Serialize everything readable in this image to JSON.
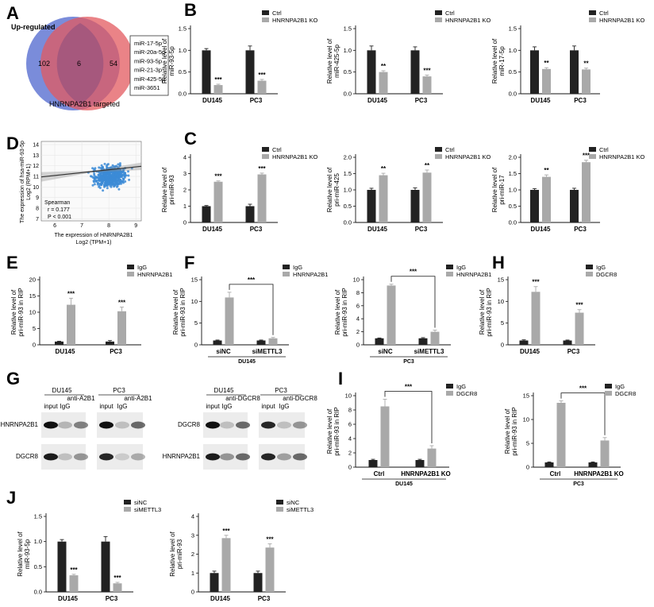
{
  "colors": {
    "dark": "#222222",
    "light": "#a9a9a9",
    "venn_left": "#6b7fd6",
    "venn_right": "#e35a5f"
  },
  "panel_A": {
    "letter": "A",
    "left_label": "Up-regulated",
    "right_label": "HNRNPA2B1 targeted",
    "left_count": "102",
    "overlap_count": "6",
    "right_count": "54",
    "overlap_mirnas": [
      "miR-17-5p",
      "miR-20a-5p",
      "miR-93-5p",
      "miR-21-3p",
      "miR-425-5p",
      "miR-3651"
    ]
  },
  "panel_D": {
    "letter": "D",
    "ylabel_line1": "The expression of hsa-miR-93-5p",
    "ylabel_line2": "Log2 (RPM+1)",
    "xlabel_line1": "The expression of HNRNPA2B1",
    "xlabel_line2": "Log2 (TPM+1)",
    "stats": [
      "Spearman",
      "r = 0.177",
      "P < 0.001"
    ],
    "xticks": [
      "6",
      "7",
      "8",
      "9"
    ],
    "yticks": [
      "14",
      "13",
      "12",
      "11",
      "10",
      "9",
      "8",
      "7"
    ],
    "chart_data": {
      "type": "scatter",
      "title": "",
      "xlim": [
        5.5,
        9.2
      ],
      "ylim": [
        6.8,
        14.3
      ],
      "trend": {
        "x": [
          5.5,
          9.2
        ],
        "y": [
          10.95,
          11.95
        ]
      }
    }
  },
  "panel_G": {
    "letter": "G",
    "left": {
      "groups": [
        "DU145",
        "PC3"
      ],
      "lanes": [
        "input",
        "IgG",
        "anti-A2B1",
        "input",
        "IgG",
        "anti-A2B1"
      ],
      "rows": [
        "HNRNPA2B1",
        "DGCR8"
      ]
    },
    "right": {
      "groups": [
        "DU145",
        "PC3"
      ],
      "lanes": [
        "input",
        "IgG",
        "anti-DGCR8",
        "input",
        "IgG",
        "anti-DGCR8"
      ],
      "rows": [
        "DGCR8",
        "HNRNPA2B1"
      ]
    }
  },
  "chart_data": [
    {
      "id": "B1",
      "letter": "B",
      "type": "bar",
      "ylabel": [
        "Relative level of",
        "miR-93-5p"
      ],
      "ylim": [
        0,
        1.5
      ],
      "yticks": [
        "0.0",
        "0.5",
        "1.0",
        "1.5"
      ],
      "categories": [
        "DU145",
        "PC3"
      ],
      "series": [
        {
          "name": "Ctrl",
          "values": [
            1.0,
            1.0
          ],
          "err": [
            0.04,
            0.1
          ]
        },
        {
          "name": "HNRNPA2B1 KO",
          "values": [
            0.2,
            0.3
          ],
          "err": [
            0.02,
            0.03
          ]
        }
      ],
      "sig": [
        "***",
        "***"
      ]
    },
    {
      "id": "B2",
      "letter": "",
      "type": "bar",
      "ylabel": [
        "Relative level of",
        "miR-425-5p"
      ],
      "ylim": [
        0,
        1.5
      ],
      "yticks": [
        "0.0",
        "0.5",
        "1.0",
        "1.5"
      ],
      "categories": [
        "DU145",
        "PC3"
      ],
      "series": [
        {
          "name": "Ctrl",
          "values": [
            1.0,
            1.0
          ],
          "err": [
            0.1,
            0.08
          ]
        },
        {
          "name": "HNRNPA2B1 KO",
          "values": [
            0.5,
            0.4
          ],
          "err": [
            0.03,
            0.03
          ]
        }
      ],
      "sig": [
        "**",
        "***"
      ]
    },
    {
      "id": "B3",
      "letter": "",
      "type": "bar",
      "ylabel": [
        "Relative level of",
        "miR-17-5p"
      ],
      "ylim": [
        0,
        1.5
      ],
      "yticks": [
        "0.0",
        "0.5",
        "1.0",
        "1.5"
      ],
      "categories": [
        "DU145",
        "PC3"
      ],
      "series": [
        {
          "name": "Ctrl",
          "values": [
            1.0,
            1.0
          ],
          "err": [
            0.08,
            0.1
          ]
        },
        {
          "name": "HNRNPA2B1 KO",
          "values": [
            0.57,
            0.56
          ],
          "err": [
            0.03,
            0.03
          ]
        }
      ],
      "sig": [
        "**",
        "**"
      ]
    },
    {
      "id": "C1",
      "letter": "C",
      "type": "bar",
      "ylabel": [
        "Relative level of",
        "pri-miR-93"
      ],
      "ylim": [
        0,
        4
      ],
      "yticks": [
        "0",
        "1",
        "2",
        "3",
        "4"
      ],
      "categories": [
        "DU145",
        "PC3"
      ],
      "series": [
        {
          "name": "Ctrl",
          "values": [
            1.0,
            1.0
          ],
          "err": [
            0.04,
            0.12
          ]
        },
        {
          "name": "HNRNPA2B1 KO",
          "values": [
            2.5,
            2.95
          ],
          "err": [
            0.05,
            0.08
          ]
        }
      ],
      "sig": [
        "***",
        "***"
      ]
    },
    {
      "id": "C2",
      "letter": "",
      "type": "bar",
      "ylabel": [
        "Relative level of",
        "pri-miR-425"
      ],
      "ylim": [
        0,
        2.0
      ],
      "yticks": [
        "0.0",
        "0.5",
        "1.0",
        "1.5",
        "2.0"
      ],
      "categories": [
        "DU145",
        "PC3"
      ],
      "series": [
        {
          "name": "Ctrl",
          "values": [
            1.0,
            1.0
          ],
          "err": [
            0.05,
            0.06
          ]
        },
        {
          "name": "HNRNPA2B1 KO",
          "values": [
            1.45,
            1.53
          ],
          "err": [
            0.06,
            0.08
          ]
        }
      ],
      "sig": [
        "**",
        "**"
      ]
    },
    {
      "id": "C3",
      "letter": "",
      "type": "bar",
      "ylabel": [
        "Relative level of",
        "pri-miR-17"
      ],
      "ylim": [
        0,
        2.0
      ],
      "yticks": [
        "0.0",
        "0.5",
        "1.0",
        "1.5",
        "2.0"
      ],
      "categories": [
        "DU145",
        "PC3"
      ],
      "series": [
        {
          "name": "Ctrl",
          "values": [
            1.0,
            1.0
          ],
          "err": [
            0.04,
            0.05
          ]
        },
        {
          "name": "HNRNPA2B1 KO",
          "values": [
            1.4,
            1.85
          ],
          "err": [
            0.06,
            0.06
          ]
        }
      ],
      "sig": [
        "**",
        "***"
      ]
    },
    {
      "id": "E",
      "letter": "E",
      "type": "bar",
      "ylabel": [
        "Relative level of",
        "pri-miR-93 in RIP"
      ],
      "ylim": [
        0,
        20
      ],
      "yticks": [
        "0",
        "5",
        "10",
        "15",
        "20"
      ],
      "categories": [
        "DU145",
        "PC3"
      ],
      "series": [
        {
          "name": "IgG",
          "values": [
            1.0,
            1.0
          ],
          "err": [
            0.1,
            0.3
          ]
        },
        {
          "name": "HNRNPA2B1",
          "values": [
            12.3,
            10.3
          ],
          "err": [
            2.0,
            1.3
          ]
        }
      ],
      "sig": [
        "***",
        "***"
      ]
    },
    {
      "id": "F1",
      "letter": "F",
      "type": "bar",
      "ylabel": [
        "Relative level of",
        "pri-miR-93 in RIP"
      ],
      "ylim": [
        0,
        15
      ],
      "yticks": [
        "0",
        "5",
        "10",
        "15"
      ],
      "categories": [
        "siNC",
        "siMETTL3"
      ],
      "group_label": "DU145",
      "series": [
        {
          "name": "IgG",
          "values": [
            1.0,
            1.0
          ],
          "err": [
            0.1,
            0.1
          ]
        },
        {
          "name": "HNRNPA2B1",
          "values": [
            10.9,
            1.5
          ],
          "err": [
            1.2,
            0.2
          ]
        }
      ],
      "bracket": "***"
    },
    {
      "id": "F2",
      "letter": "",
      "type": "bar",
      "ylabel": [
        "Relative level of",
        "pri-miR-93 in RIP"
      ],
      "ylim": [
        0,
        10
      ],
      "yticks": [
        "0",
        "2",
        "4",
        "6",
        "8",
        "10"
      ],
      "categories": [
        "siNC",
        "siMETTL3"
      ],
      "group_label": "PC3",
      "series": [
        {
          "name": "IgG",
          "values": [
            1.0,
            1.0
          ],
          "err": [
            0.05,
            0.1
          ]
        },
        {
          "name": "HNRNPA2B1",
          "values": [
            9.1,
            2.0
          ],
          "err": [
            0.2,
            0.25
          ]
        }
      ],
      "bracket": "***"
    },
    {
      "id": "H",
      "letter": "H",
      "type": "bar",
      "ylabel": [
        "Relative level of",
        "pri-miR-93 in RIP"
      ],
      "ylim": [
        0,
        15
      ],
      "yticks": [
        "0",
        "5",
        "10",
        "15"
      ],
      "categories": [
        "DU145",
        "PC3"
      ],
      "series": [
        {
          "name": "IgG",
          "values": [
            1.0,
            1.0
          ],
          "err": [
            0.15,
            0.1
          ]
        },
        {
          "name": "DGCR8",
          "values": [
            12.2,
            7.4
          ],
          "err": [
            1.2,
            0.7
          ]
        }
      ],
      "sig": [
        "***",
        "***"
      ]
    },
    {
      "id": "I1",
      "letter": "I",
      "type": "bar",
      "ylabel": [
        "Relative level of",
        "pri-miR-93 in RIP"
      ],
      "ylim": [
        0,
        10
      ],
      "yticks": [
        "0",
        "2",
        "4",
        "6",
        "8",
        "10"
      ],
      "categories": [
        "Ctrl",
        "HNRNPA2B1 KO"
      ],
      "group_label": "DU145",
      "series": [
        {
          "name": "IgG",
          "values": [
            1.0,
            1.0
          ],
          "err": [
            0.1,
            0.1
          ]
        },
        {
          "name": "DGCR8",
          "values": [
            8.5,
            2.6
          ],
          "err": [
            1.0,
            0.4
          ]
        }
      ],
      "bracket": "***"
    },
    {
      "id": "I2",
      "letter": "",
      "type": "bar",
      "ylabel": [
        "Relative level of",
        "pri-miR-93 in RIP"
      ],
      "ylim": [
        0,
        15
      ],
      "yticks": [
        "0",
        "5",
        "10",
        "15"
      ],
      "categories": [
        "Ctrl",
        "HNRNPA2B1 KO"
      ],
      "group_label": "PC3",
      "series": [
        {
          "name": "IgG",
          "values": [
            1.0,
            1.0
          ],
          "err": [
            0.1,
            0.1
          ]
        },
        {
          "name": "DGCR8",
          "values": [
            13.5,
            5.6
          ],
          "err": [
            0.4,
            0.6
          ]
        }
      ],
      "bracket": "***"
    },
    {
      "id": "J1",
      "letter": "J",
      "type": "bar",
      "ylabel": [
        "Relative level of",
        "miR-93-5p"
      ],
      "ylim": [
        0,
        1.5
      ],
      "yticks": [
        "0.0",
        "0.5",
        "1.0",
        "1.5"
      ],
      "categories": [
        "DU145",
        "PC3"
      ],
      "series": [
        {
          "name": "siNC",
          "values": [
            1.0,
            1.0
          ],
          "err": [
            0.04,
            0.1
          ]
        },
        {
          "name": "siMETTL3",
          "values": [
            0.33,
            0.17
          ],
          "err": [
            0.02,
            0.02
          ]
        }
      ],
      "sig": [
        "***",
        "***"
      ]
    },
    {
      "id": "J2",
      "letter": "",
      "type": "bar",
      "ylabel": [
        "Relative level of",
        "pri-miR-93"
      ],
      "ylim": [
        0,
        4
      ],
      "yticks": [
        "0",
        "1",
        "2",
        "3",
        "4"
      ],
      "categories": [
        "DU145",
        "PC3"
      ],
      "series": [
        {
          "name": "siNC",
          "values": [
            1.0,
            1.0
          ],
          "err": [
            0.1,
            0.1
          ]
        },
        {
          "name": "siMETTL3",
          "values": [
            2.85,
            2.35
          ],
          "err": [
            0.15,
            0.2
          ]
        }
      ],
      "sig": [
        "***",
        "***"
      ]
    }
  ]
}
